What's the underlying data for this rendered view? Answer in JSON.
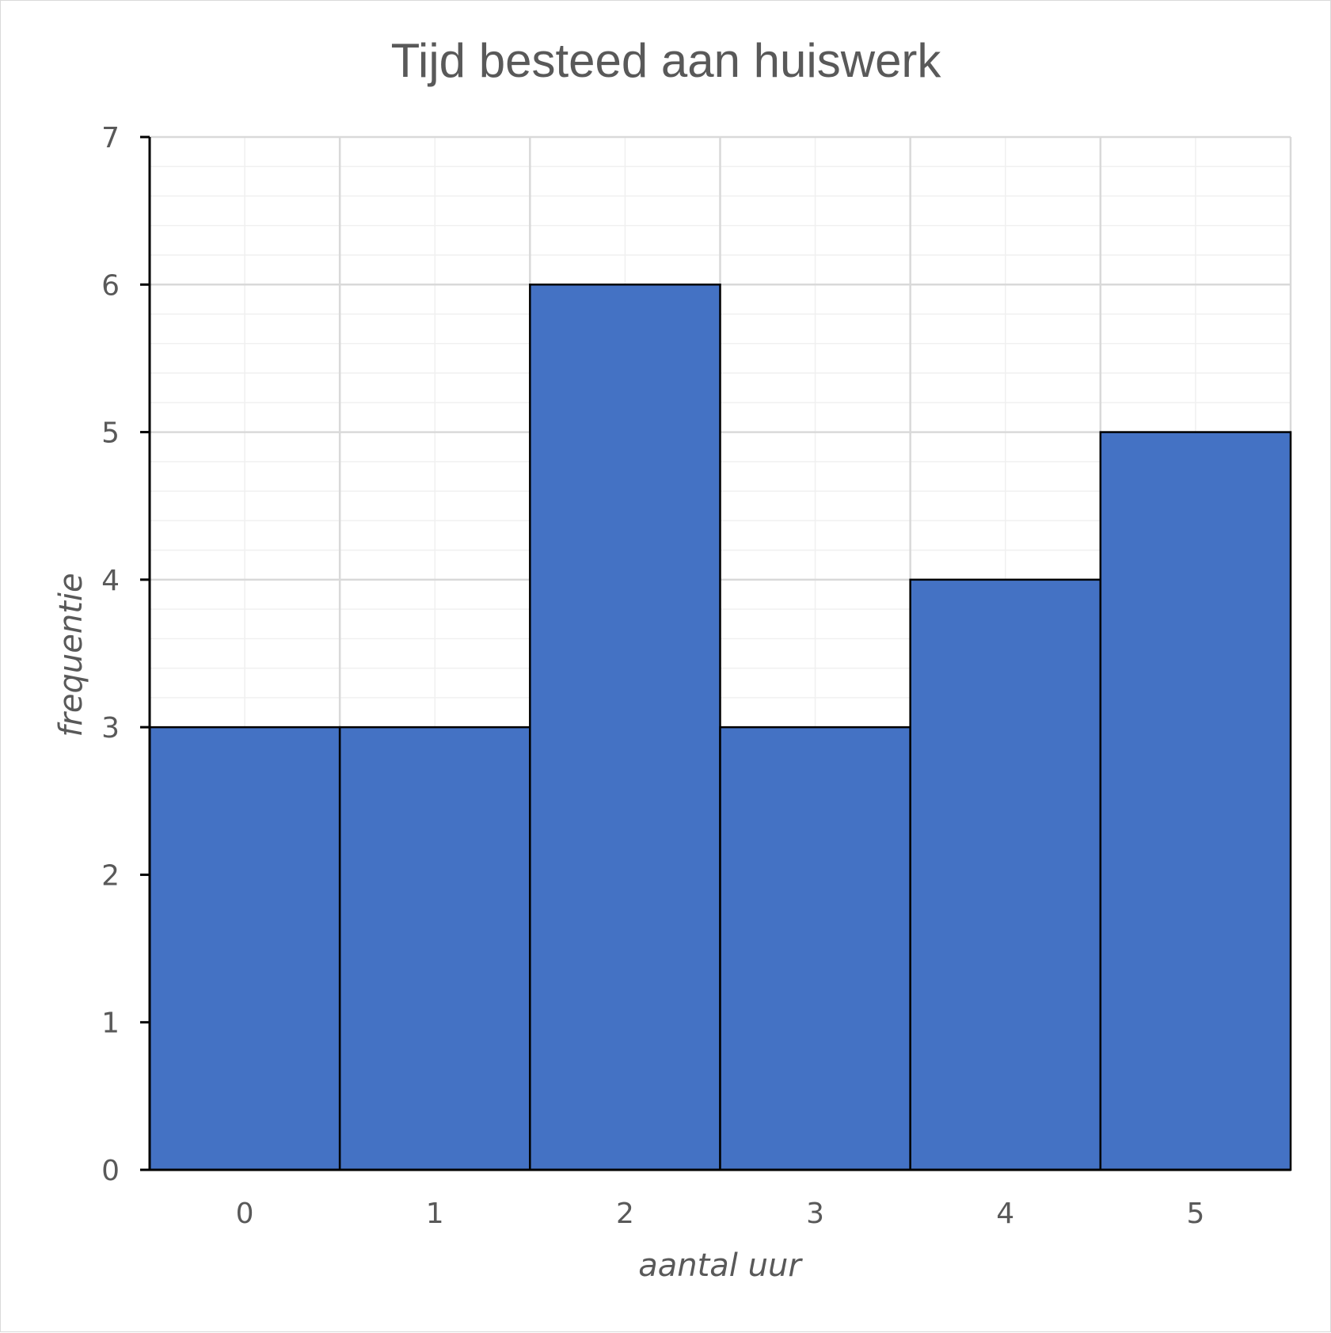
{
  "chart_data": {
    "type": "bar",
    "title": "Tijd besteed aan huiswerk",
    "xlabel": "aantal uur",
    "ylabel": "frequentie",
    "categories": [
      "0",
      "1",
      "2",
      "3",
      "4",
      "5"
    ],
    "values": [
      3,
      3,
      6,
      3,
      4,
      5
    ],
    "ylim": [
      0,
      7
    ],
    "yticks": [
      "0",
      "1",
      "2",
      "3",
      "4",
      "5",
      "6",
      "7"
    ],
    "grid": true,
    "legend": "none",
    "colors": {
      "bar_fill": "#4472c4",
      "bar_edge": "#000000",
      "major_grid": "#d9d9d9",
      "minor_grid": "#f0f0f0",
      "text": "#595959"
    }
  }
}
